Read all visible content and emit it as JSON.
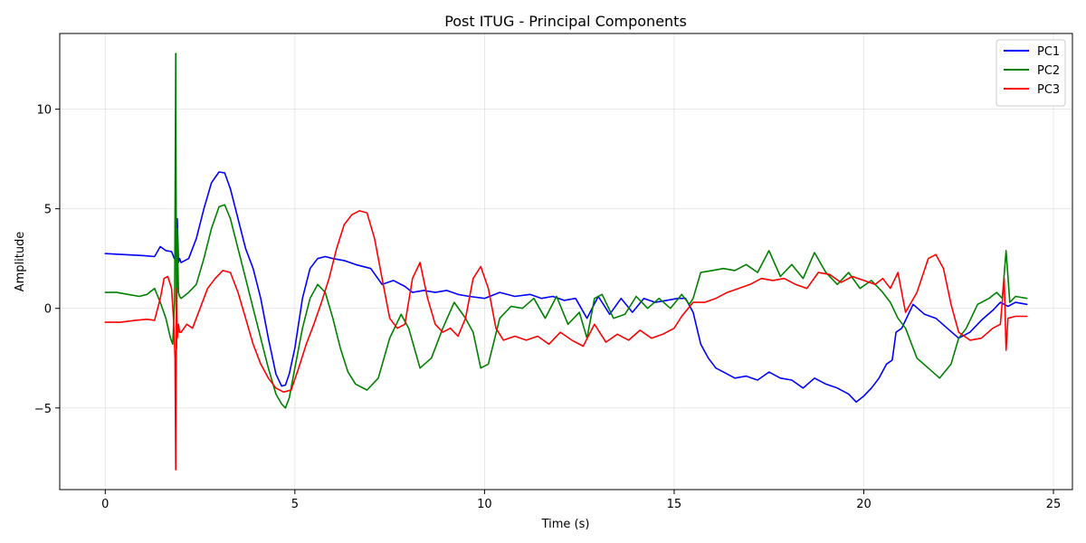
{
  "chart_data": {
    "type": "line",
    "title": "Post ITUG - Principal Components",
    "xlabel": "Time (s)",
    "ylabel": "Amplitude",
    "xlim": [
      -1.2,
      25.5
    ],
    "ylim": [
      -9.1,
      13.8
    ],
    "xticks": [
      0,
      5,
      10,
      15,
      20,
      25
    ],
    "yticks": [
      -5,
      0,
      5,
      10
    ],
    "xtick_labels": [
      "0",
      "5",
      "10",
      "15",
      "20",
      "25"
    ],
    "ytick_labels": [
      "−5",
      "0",
      "5",
      "10"
    ],
    "grid": true,
    "legend_position": "top-right",
    "series": [
      {
        "name": "PC1",
        "color": "#0000ff",
        "x": [
          0,
          0.5,
          1.0,
          1.3,
          1.45,
          1.6,
          1.75,
          1.82,
          1.86,
          1.9,
          1.93,
          1.96,
          2.0,
          2.2,
          2.4,
          2.6,
          2.8,
          3.0,
          3.15,
          3.3,
          3.5,
          3.7,
          3.9,
          4.1,
          4.3,
          4.5,
          4.65,
          4.75,
          4.85,
          5.0,
          5.2,
          5.4,
          5.6,
          5.8,
          6.0,
          6.3,
          6.6,
          7.0,
          7.3,
          7.6,
          7.9,
          8.1,
          8.4,
          8.7,
          9.0,
          9.3,
          9.6,
          10.0,
          10.4,
          10.8,
          11.2,
          11.5,
          11.8,
          12.1,
          12.4,
          12.7,
          13.0,
          13.3,
          13.6,
          13.9,
          14.2,
          14.5,
          14.8,
          15.1,
          15.3,
          15.5,
          15.7,
          15.9,
          16.1,
          16.3,
          16.6,
          16.9,
          17.2,
          17.5,
          17.8,
          18.1,
          18.4,
          18.7,
          19.0,
          19.3,
          19.6,
          19.8,
          20.0,
          20.2,
          20.4,
          20.6,
          20.75,
          20.85,
          21.0,
          21.3,
          21.6,
          21.9,
          22.2,
          22.5,
          22.8,
          23.1,
          23.4,
          23.6,
          23.8,
          24.0,
          24.3
        ],
        "values": [
          2.75,
          2.7,
          2.65,
          2.6,
          3.1,
          2.9,
          2.85,
          2.5,
          2.6,
          4.5,
          2.3,
          2.5,
          2.3,
          2.5,
          3.5,
          5.0,
          6.3,
          6.85,
          6.8,
          6.0,
          4.5,
          3.0,
          2.0,
          0.5,
          -1.5,
          -3.3,
          -3.9,
          -3.85,
          -3.3,
          -2.0,
          0.5,
          2.0,
          2.5,
          2.6,
          2.5,
          2.4,
          2.2,
          2.0,
          1.2,
          1.4,
          1.1,
          0.8,
          0.9,
          0.8,
          0.9,
          0.7,
          0.6,
          0.5,
          0.8,
          0.6,
          0.7,
          0.5,
          0.6,
          0.4,
          0.5,
          -0.5,
          0.6,
          -0.3,
          0.5,
          -0.2,
          0.5,
          0.3,
          0.4,
          0.5,
          0.5,
          -0.2,
          -1.8,
          -2.5,
          -3.0,
          -3.2,
          -3.5,
          -3.4,
          -3.6,
          -3.2,
          -3.5,
          -3.6,
          -4.0,
          -3.5,
          -3.8,
          -4.0,
          -4.3,
          -4.7,
          -4.4,
          -4.0,
          -3.5,
          -2.8,
          -2.6,
          -1.2,
          -1.0,
          0.2,
          -0.3,
          -0.5,
          -1.0,
          -1.5,
          -1.2,
          -0.6,
          -0.1,
          0.3,
          0.1,
          0.3,
          0.2
        ]
      },
      {
        "name": "PC2",
        "color": "#008000",
        "x": [
          0,
          0.3,
          0.6,
          0.9,
          1.1,
          1.3,
          1.45,
          1.6,
          1.72,
          1.78,
          1.83,
          1.86,
          1.88,
          1.9,
          1.93,
          1.96,
          2.0,
          2.2,
          2.4,
          2.6,
          2.8,
          3.0,
          3.15,
          3.3,
          3.5,
          3.7,
          3.9,
          4.1,
          4.3,
          4.5,
          4.65,
          4.75,
          4.85,
          5.0,
          5.2,
          5.4,
          5.6,
          5.8,
          6.0,
          6.2,
          6.4,
          6.6,
          6.9,
          7.2,
          7.5,
          7.8,
          8.0,
          8.3,
          8.6,
          8.9,
          9.2,
          9.5,
          9.7,
          9.9,
          10.1,
          10.4,
          10.7,
          11.0,
          11.3,
          11.6,
          11.9,
          12.2,
          12.5,
          12.7,
          12.9,
          13.1,
          13.4,
          13.7,
          14.0,
          14.3,
          14.6,
          14.9,
          15.2,
          15.4,
          15.5,
          15.7,
          16.0,
          16.3,
          16.6,
          16.9,
          17.2,
          17.5,
          17.8,
          18.1,
          18.4,
          18.7,
          19.0,
          19.3,
          19.6,
          19.9,
          20.2,
          20.5,
          20.7,
          20.9,
          21.1,
          21.4,
          21.7,
          22.0,
          22.3,
          22.5,
          22.7,
          23.0,
          23.3,
          23.5,
          23.65,
          23.75,
          23.85,
          24.0,
          24.3
        ],
        "values": [
          0.8,
          0.8,
          0.7,
          0.6,
          0.7,
          1.0,
          0.3,
          -0.5,
          -1.5,
          -1.8,
          0.5,
          12.8,
          -2.0,
          4.0,
          0.8,
          0.6,
          0.5,
          0.8,
          1.2,
          2.5,
          4.0,
          5.1,
          5.2,
          4.5,
          3.0,
          1.5,
          0.0,
          -1.5,
          -3.0,
          -4.3,
          -4.8,
          -5.0,
          -4.5,
          -3.0,
          -1.0,
          0.5,
          1.2,
          0.8,
          -0.5,
          -2.0,
          -3.2,
          -3.8,
          -4.1,
          -3.5,
          -1.5,
          -0.3,
          -1.0,
          -3.0,
          -2.5,
          -1.0,
          0.3,
          -0.5,
          -1.2,
          -3.0,
          -2.8,
          -0.5,
          0.1,
          0.0,
          0.5,
          -0.5,
          0.6,
          -0.8,
          -0.2,
          -1.5,
          0.5,
          0.7,
          -0.5,
          -0.3,
          0.6,
          0.0,
          0.5,
          0.0,
          0.7,
          0.2,
          0.5,
          1.8,
          1.9,
          2.0,
          1.9,
          2.2,
          1.8,
          2.9,
          1.6,
          2.2,
          1.5,
          2.8,
          1.8,
          1.2,
          1.8,
          1.0,
          1.4,
          0.8,
          0.3,
          -0.5,
          -1.0,
          -2.5,
          -3.0,
          -3.5,
          -2.8,
          -1.5,
          -1.0,
          0.2,
          0.5,
          0.8,
          0.5,
          2.9,
          0.3,
          0.6,
          0.5
        ]
      },
      {
        "name": "PC3",
        "color": "#ff0000",
        "x": [
          0,
          0.4,
          0.8,
          1.1,
          1.3,
          1.45,
          1.55,
          1.65,
          1.75,
          1.8,
          1.84,
          1.86,
          1.88,
          1.9,
          1.93,
          1.96,
          2.0,
          2.15,
          2.3,
          2.5,
          2.7,
          2.9,
          3.1,
          3.3,
          3.5,
          3.7,
          3.9,
          4.1,
          4.3,
          4.5,
          4.7,
          4.9,
          5.1,
          5.3,
          5.5,
          5.7,
          5.9,
          6.1,
          6.3,
          6.5,
          6.7,
          6.9,
          7.1,
          7.3,
          7.5,
          7.7,
          7.9,
          8.1,
          8.3,
          8.5,
          8.7,
          8.9,
          9.1,
          9.3,
          9.5,
          9.7,
          9.9,
          10.1,
          10.3,
          10.5,
          10.8,
          11.1,
          11.4,
          11.7,
          12.0,
          12.3,
          12.6,
          12.9,
          13.2,
          13.5,
          13.8,
          14.1,
          14.4,
          14.7,
          15.0,
          15.2,
          15.5,
          15.8,
          16.1,
          16.4,
          16.7,
          17.0,
          17.3,
          17.6,
          17.9,
          18.2,
          18.5,
          18.8,
          19.1,
          19.4,
          19.7,
          20.0,
          20.3,
          20.5,
          20.7,
          20.9,
          21.1,
          21.4,
          21.7,
          21.9,
          22.1,
          22.3,
          22.5,
          22.8,
          23.1,
          23.4,
          23.6,
          23.7,
          23.75,
          23.8,
          24.0,
          24.3
        ],
        "values": [
          -0.7,
          -0.7,
          -0.6,
          -0.55,
          -0.6,
          0.5,
          1.5,
          1.6,
          1.0,
          -0.5,
          -2.5,
          -8.1,
          1.0,
          -1.5,
          -0.8,
          -1.2,
          -1.2,
          -0.8,
          -1.0,
          0.0,
          1.0,
          1.5,
          1.9,
          1.8,
          0.8,
          -0.5,
          -1.8,
          -2.8,
          -3.5,
          -4.0,
          -4.2,
          -4.1,
          -3.0,
          -1.8,
          -0.8,
          0.3,
          1.5,
          3.0,
          4.2,
          4.7,
          4.9,
          4.8,
          3.5,
          1.5,
          -0.5,
          -1.0,
          -0.8,
          1.5,
          2.3,
          0.5,
          -0.8,
          -1.2,
          -1.0,
          -1.4,
          -0.5,
          1.5,
          2.1,
          1.0,
          -1.0,
          -1.6,
          -1.4,
          -1.6,
          -1.4,
          -1.8,
          -1.2,
          -1.6,
          -1.9,
          -0.8,
          -1.7,
          -1.3,
          -1.6,
          -1.1,
          -1.5,
          -1.3,
          -1.0,
          -0.4,
          0.3,
          0.3,
          0.5,
          0.8,
          1.0,
          1.2,
          1.5,
          1.4,
          1.5,
          1.2,
          1.0,
          1.8,
          1.7,
          1.3,
          1.6,
          1.4,
          1.2,
          1.5,
          1.0,
          1.8,
          -0.2,
          0.8,
          2.5,
          2.7,
          2.0,
          0.2,
          -1.2,
          -1.6,
          -1.5,
          -1.0,
          -0.8,
          1.5,
          -2.1,
          -0.5,
          -0.4,
          -0.4
        ]
      }
    ]
  }
}
